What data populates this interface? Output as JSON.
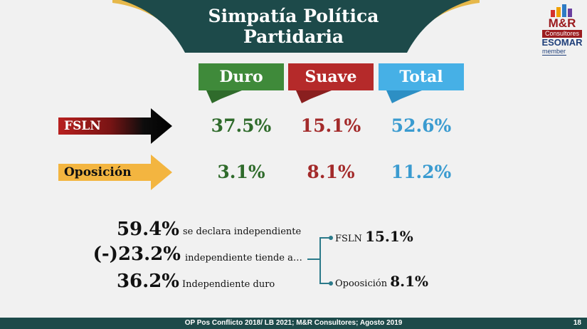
{
  "title": {
    "line1": "Simpatía Política",
    "line2": "Partidaria"
  },
  "logo": {
    "brand": "M&R",
    "sub": "Consultores",
    "esomar": "ESOMAR",
    "member": "member"
  },
  "colors": {
    "duro": "#3f8a3a",
    "suave": "#b52a2a",
    "total": "#46b0e6",
    "ribbon": "#1d4a4a",
    "gold": "#e6b84a"
  },
  "chart_data": {
    "type": "table",
    "columns": [
      "Duro",
      "Suave",
      "Total"
    ],
    "rows": [
      {
        "label": "FSLN",
        "values": [
          "37.5%",
          "15.1%",
          "52.6%"
        ]
      },
      {
        "label": "Oposición",
        "values": [
          "3.1%",
          "8.1%",
          "11.2%"
        ]
      }
    ]
  },
  "breakdown": {
    "lines": [
      {
        "value": "59.4%",
        "text": "se declara independiente"
      },
      {
        "value": "(-)23.2%",
        "text": "independiente tiende a…"
      },
      {
        "value": "36.2%",
        "text": "Independiente duro"
      }
    ],
    "leans": [
      {
        "label": "FSLN",
        "value": "15.1%"
      },
      {
        "label": "Opoosición",
        "value": "8.1%"
      }
    ]
  },
  "footer": {
    "source": "OP Pos Conflicto 2018/ LB 2021; M&R Consultores; Agosto 2019",
    "page": "18"
  }
}
